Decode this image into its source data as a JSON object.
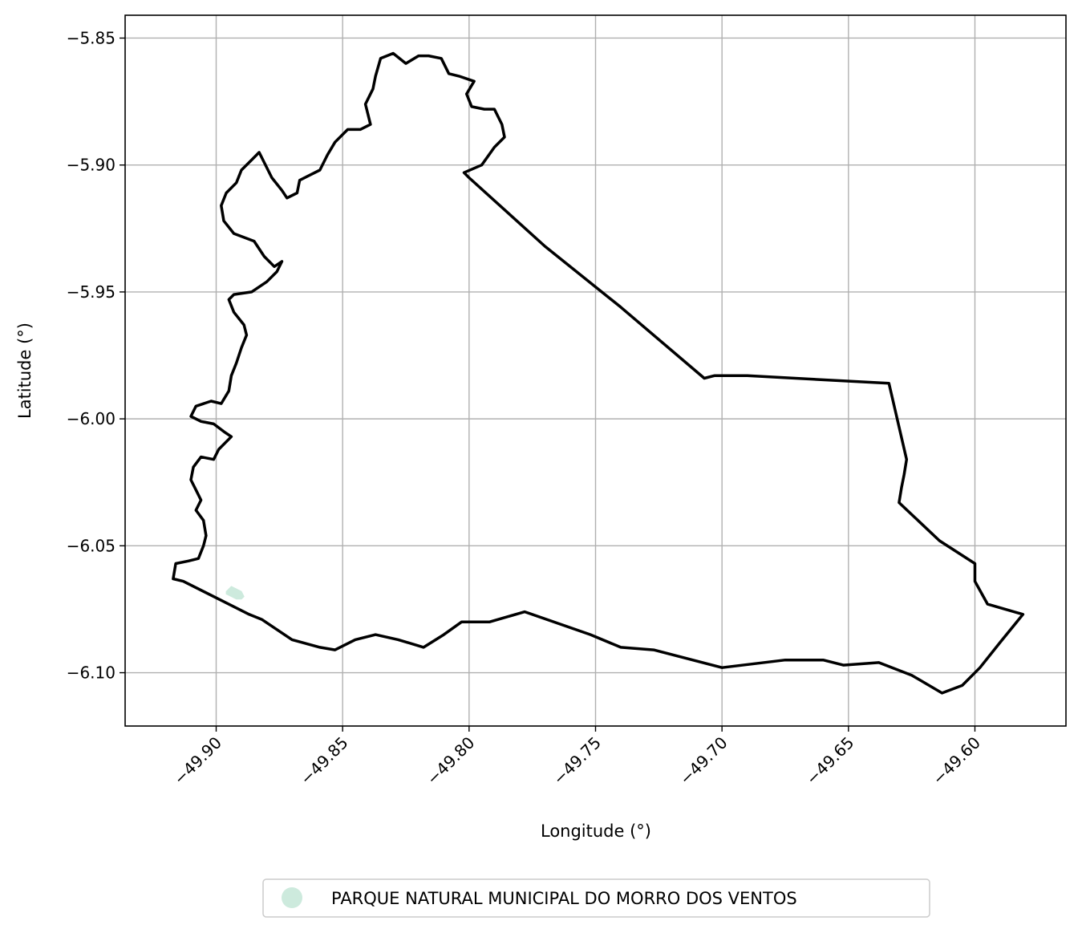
{
  "chart_data": {
    "type": "map",
    "xlabel": "Longitude (°)",
    "ylabel": "Latitude (°)",
    "xlim": [
      -49.936,
      -49.564
    ],
    "ylim": [
      -6.121,
      -5.841
    ],
    "grid": true,
    "legend_position": "bottom-center",
    "x_ticks": [
      {
        "value": -49.9,
        "label": "−49.90"
      },
      {
        "value": -49.85,
        "label": "−49.85"
      },
      {
        "value": -49.8,
        "label": "−49.80"
      },
      {
        "value": -49.75,
        "label": "−49.75"
      },
      {
        "value": -49.7,
        "label": "−49.70"
      },
      {
        "value": -49.65,
        "label": "−49.65"
      },
      {
        "value": -49.6,
        "label": "−49.60"
      }
    ],
    "y_ticks": [
      {
        "value": -5.85,
        "label": "−5.85"
      },
      {
        "value": -5.9,
        "label": "−5.90"
      },
      {
        "value": -5.95,
        "label": "−5.95"
      },
      {
        "value": -6.0,
        "label": "−6.00"
      },
      {
        "value": -6.05,
        "label": "−6.05"
      },
      {
        "value": -6.1,
        "label": "−6.10"
      }
    ],
    "boundary": {
      "color": "#000000",
      "coordinates": [
        [
          -49.917,
          -6.063
        ],
        [
          -49.913,
          -6.064
        ],
        [
          -49.897,
          -6.072
        ],
        [
          -49.887,
          -6.077
        ],
        [
          -49.882,
          -6.079
        ],
        [
          -49.87,
          -6.087
        ],
        [
          -49.859,
          -6.09
        ],
        [
          -49.853,
          -6.091
        ],
        [
          -49.845,
          -6.087
        ],
        [
          -49.837,
          -6.085
        ],
        [
          -49.828,
          -6.087
        ],
        [
          -49.818,
          -6.09
        ],
        [
          -49.81,
          -6.085
        ],
        [
          -49.803,
          -6.08
        ],
        [
          -49.792,
          -6.08
        ],
        [
          -49.778,
          -6.076
        ],
        [
          -49.752,
          -6.085
        ],
        [
          -49.74,
          -6.09
        ],
        [
          -49.727,
          -6.091
        ],
        [
          -49.7,
          -6.098
        ],
        [
          -49.675,
          -6.095
        ],
        [
          -49.66,
          -6.095
        ],
        [
          -49.652,
          -6.097
        ],
        [
          -49.638,
          -6.096
        ],
        [
          -49.625,
          -6.101
        ],
        [
          -49.613,
          -6.108
        ],
        [
          -49.605,
          -6.105
        ],
        [
          -49.598,
          -6.098
        ],
        [
          -49.59,
          -6.088
        ],
        [
          -49.581,
          -6.077
        ],
        [
          -49.588,
          -6.075
        ],
        [
          -49.595,
          -6.073
        ],
        [
          -49.6,
          -6.064
        ],
        [
          -49.6,
          -6.057
        ],
        [
          -49.614,
          -6.048
        ],
        [
          -49.63,
          -6.033
        ],
        [
          -49.629,
          -6.027
        ],
        [
          -49.628,
          -6.022
        ],
        [
          -49.627,
          -6.016
        ],
        [
          -49.634,
          -5.986
        ],
        [
          -49.69,
          -5.983
        ],
        [
          -49.703,
          -5.983
        ],
        [
          -49.707,
          -5.984
        ],
        [
          -49.74,
          -5.956
        ],
        [
          -49.77,
          -5.932
        ],
        [
          -49.8,
          -5.905
        ],
        [
          -49.802,
          -5.903
        ],
        [
          -49.795,
          -5.9
        ],
        [
          -49.79,
          -5.893
        ],
        [
          -49.786,
          -5.889
        ],
        [
          -49.787,
          -5.884
        ],
        [
          -49.79,
          -5.878
        ],
        [
          -49.794,
          -5.878
        ],
        [
          -49.799,
          -5.877
        ],
        [
          -49.801,
          -5.872
        ],
        [
          -49.798,
          -5.867
        ],
        [
          -49.804,
          -5.865
        ],
        [
          -49.808,
          -5.864
        ],
        [
          -49.811,
          -5.858
        ],
        [
          -49.816,
          -5.857
        ],
        [
          -49.82,
          -5.857
        ],
        [
          -49.825,
          -5.86
        ],
        [
          -49.83,
          -5.856
        ],
        [
          -49.835,
          -5.858
        ],
        [
          -49.837,
          -5.865
        ],
        [
          -49.838,
          -5.87
        ],
        [
          -49.841,
          -5.876
        ],
        [
          -49.839,
          -5.884
        ],
        [
          -49.843,
          -5.886
        ],
        [
          -49.848,
          -5.886
        ],
        [
          -49.853,
          -5.891
        ],
        [
          -49.856,
          -5.896
        ],
        [
          -49.859,
          -5.902
        ],
        [
          -49.863,
          -5.904
        ],
        [
          -49.867,
          -5.906
        ],
        [
          -49.868,
          -5.911
        ],
        [
          -49.872,
          -5.913
        ],
        [
          -49.874,
          -5.91
        ],
        [
          -49.878,
          -5.905
        ],
        [
          -49.881,
          -5.899
        ],
        [
          -49.883,
          -5.895
        ],
        [
          -49.886,
          -5.898
        ],
        [
          -49.89,
          -5.902
        ],
        [
          -49.892,
          -5.907
        ],
        [
          -49.896,
          -5.911
        ],
        [
          -49.898,
          -5.916
        ],
        [
          -49.897,
          -5.922
        ],
        [
          -49.893,
          -5.927
        ],
        [
          -49.885,
          -5.93
        ],
        [
          -49.881,
          -5.936
        ],
        [
          -49.877,
          -5.94
        ],
        [
          -49.874,
          -5.938
        ],
        [
          -49.876,
          -5.942
        ],
        [
          -49.88,
          -5.946
        ],
        [
          -49.886,
          -5.95
        ],
        [
          -49.893,
          -5.951
        ],
        [
          -49.895,
          -5.953
        ],
        [
          -49.893,
          -5.958
        ],
        [
          -49.889,
          -5.963
        ],
        [
          -49.888,
          -5.967
        ],
        [
          -49.89,
          -5.972
        ],
        [
          -49.892,
          -5.978
        ],
        [
          -49.894,
          -5.983
        ],
        [
          -49.895,
          -5.989
        ],
        [
          -49.898,
          -5.994
        ],
        [
          -49.902,
          -5.993
        ],
        [
          -49.908,
          -5.995
        ],
        [
          -49.91,
          -5.999
        ],
        [
          -49.906,
          -6.001
        ],
        [
          -49.901,
          -6.002
        ],
        [
          -49.897,
          -6.005
        ],
        [
          -49.894,
          -6.007
        ],
        [
          -49.899,
          -6.012
        ],
        [
          -49.901,
          -6.016
        ],
        [
          -49.906,
          -6.015
        ],
        [
          -49.909,
          -6.019
        ],
        [
          -49.91,
          -6.024
        ],
        [
          -49.908,
          -6.028
        ],
        [
          -49.906,
          -6.032
        ],
        [
          -49.908,
          -6.036
        ],
        [
          -49.905,
          -6.04
        ],
        [
          -49.904,
          -6.046
        ],
        [
          -49.905,
          -6.05
        ],
        [
          -49.907,
          -6.055
        ],
        [
          -49.911,
          -6.056
        ],
        [
          -49.916,
          -6.057
        ],
        [
          -49.917,
          -6.063
        ]
      ]
    },
    "park": {
      "name": "PARQUE NATURAL MUNICIPAL DO MORRO DOS VENTOS",
      "color": "#cdeadd",
      "coordinates": [
        [
          -49.896,
          -6.068
        ],
        [
          -49.894,
          -6.066
        ],
        [
          -49.892,
          -6.067
        ],
        [
          -49.89,
          -6.068
        ],
        [
          -49.889,
          -6.07
        ],
        [
          -49.89,
          -6.071
        ],
        [
          -49.892,
          -6.071
        ],
        [
          -49.894,
          -6.07
        ],
        [
          -49.896,
          -6.069
        ]
      ]
    },
    "legend": [
      {
        "label": "PARQUE NATURAL MUNICIPAL DO MORRO DOS VENTOS",
        "color": "#cdeadd"
      }
    ]
  }
}
